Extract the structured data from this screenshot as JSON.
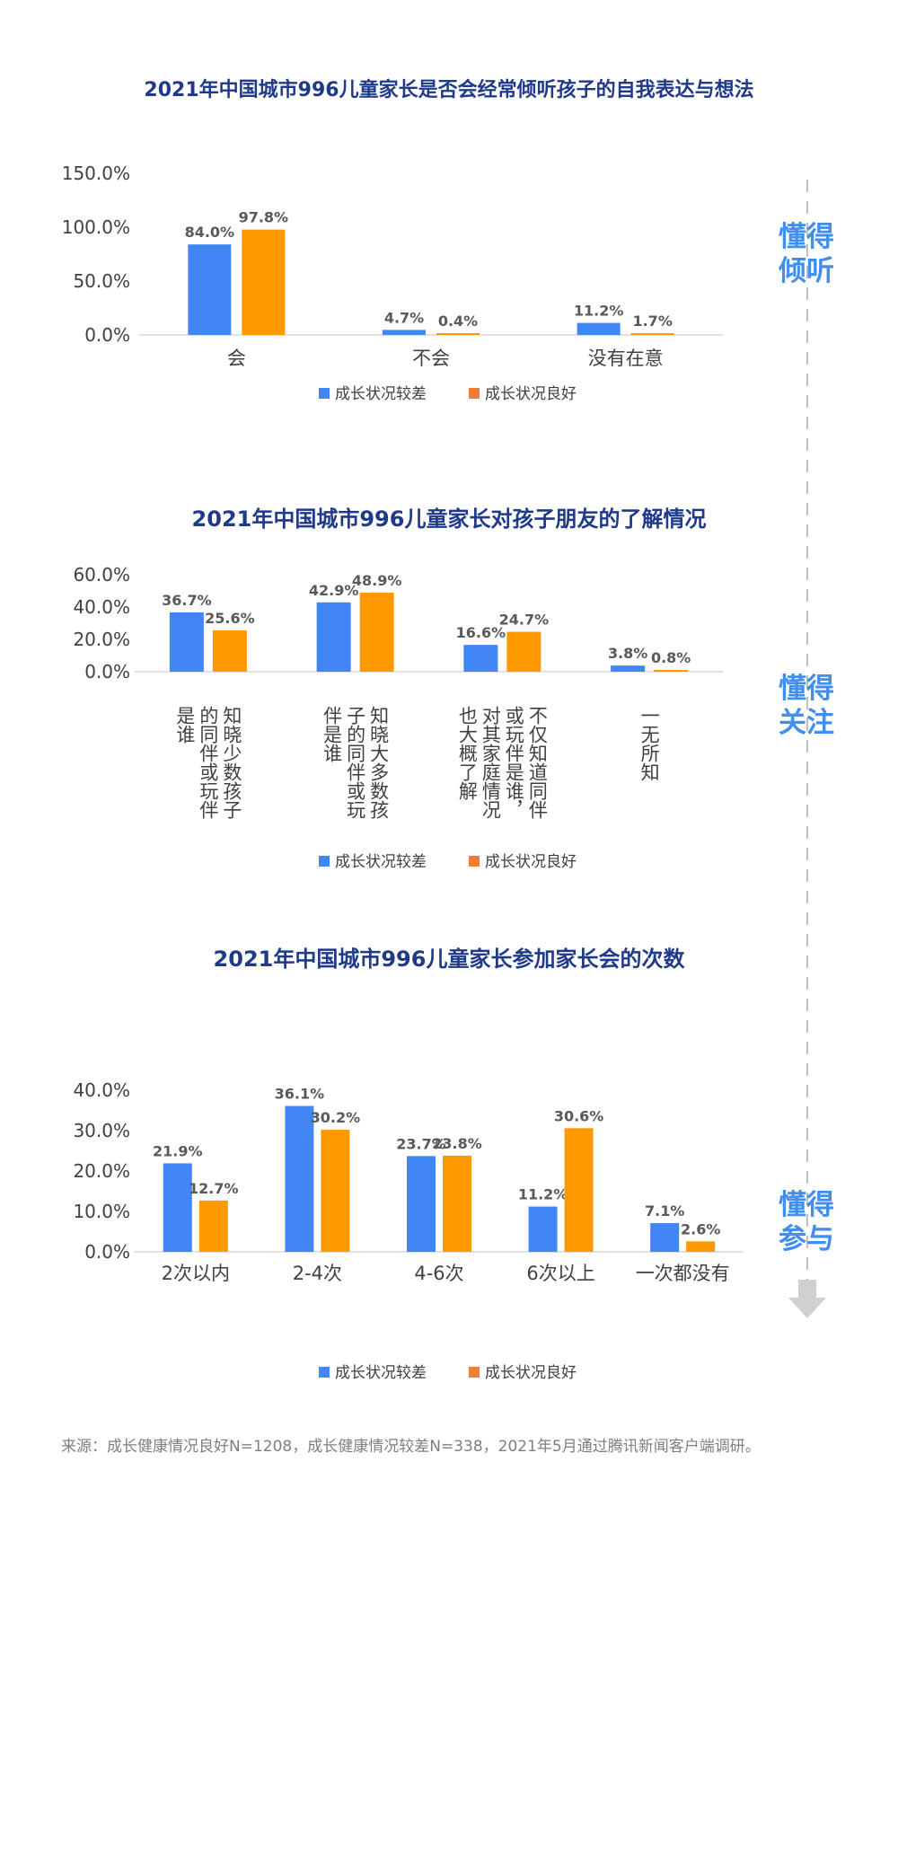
{
  "colors": {
    "poor": "#4285f4",
    "good": "#ff9900",
    "title": "#1f3a8a",
    "side": "#3f8ef0",
    "legend_good": "#ef7d35"
  },
  "legend": {
    "poor": "成长状况较差",
    "good": "成长状况良好"
  },
  "side_labels": [
    [
      "懂得",
      "倾听"
    ],
    [
      "懂得",
      "关注"
    ],
    [
      "懂得",
      "参与"
    ]
  ],
  "source": "来源：成长健康情况良好N=1208，成长健康情况较差N=338，2021年5月通过腾讯新闻客户端调研。",
  "chart_data": [
    {
      "type": "bar",
      "title": "2021年中国城市996儿童家长是否会经常倾听孩子的自我表达与想法",
      "categories": [
        "会",
        "不会",
        "没有在意"
      ],
      "ylim": [
        0,
        150
      ],
      "yticks": [
        "0.0%",
        "50.0%",
        "100.0%",
        "150.0%"
      ],
      "series": [
        {
          "name": "成长状况较差",
          "values": [
            84.0,
            4.7,
            11.2
          ],
          "labels": [
            "84.0%",
            "4.7%",
            "11.2%"
          ]
        },
        {
          "name": "成长状况良好",
          "values": [
            97.8,
            0.4,
            1.7
          ],
          "labels": [
            "97.8%",
            "0.4%",
            "1.7%"
          ]
        }
      ],
      "legend_position": "bottom"
    },
    {
      "type": "bar",
      "title": "2021年中国城市996儿童家长对孩子朋友的了解情况",
      "categories": [
        "知晓少数孩子的同伴或玩伴是谁",
        "知晓大多数孩子的同伴或玩伴是谁",
        "不仅知道同伴或玩伴是谁，对其家庭情况也大概了解",
        "一无所知"
      ],
      "category_lines": [
        [
          "是谁",
          "的同伴或玩伴",
          "知晓少数孩子"
        ],
        [
          "伴是谁",
          "子的同伴或玩",
          "知晓大多数孩"
        ],
        [
          "也大概了解",
          "对其家庭情况",
          "或玩伴是谁，",
          "不仅知道同伴"
        ],
        [
          "一无所知"
        ]
      ],
      "ylim": [
        0,
        60
      ],
      "yticks": [
        "0.0%",
        "20.0%",
        "40.0%",
        "60.0%"
      ],
      "series": [
        {
          "name": "成长状况较差",
          "values": [
            36.7,
            42.9,
            16.6,
            3.8
          ],
          "labels": [
            "36.7%",
            "42.9%",
            "16.6%",
            "3.8%"
          ]
        },
        {
          "name": "成长状况良好",
          "values": [
            25.6,
            48.9,
            24.7,
            0.8
          ],
          "labels": [
            "25.6%",
            "48.9%",
            "24.7%",
            "0.8%"
          ]
        }
      ],
      "legend_position": "bottom"
    },
    {
      "type": "bar",
      "title": "2021年中国城市996儿童家长参加家长会的次数",
      "categories": [
        "2次以内",
        "2-4次",
        "4-6次",
        "6次以上",
        "一次都没有"
      ],
      "ylim": [
        0,
        40
      ],
      "yticks": [
        "0.0%",
        "10.0%",
        "20.0%",
        "30.0%",
        "40.0%"
      ],
      "series": [
        {
          "name": "成长状况较差",
          "values": [
            21.9,
            36.1,
            23.7,
            11.2,
            7.1
          ],
          "labels": [
            "21.9%",
            "36.1%",
            "23.7%",
            "11.2%",
            "7.1%"
          ]
        },
        {
          "name": "成长状况良好",
          "values": [
            12.7,
            30.2,
            23.8,
            30.6,
            2.6
          ],
          "labels": [
            "12.7%",
            "30.2%",
            "23.8%",
            "30.6%",
            "2.6%"
          ]
        }
      ],
      "legend_position": "bottom"
    }
  ]
}
